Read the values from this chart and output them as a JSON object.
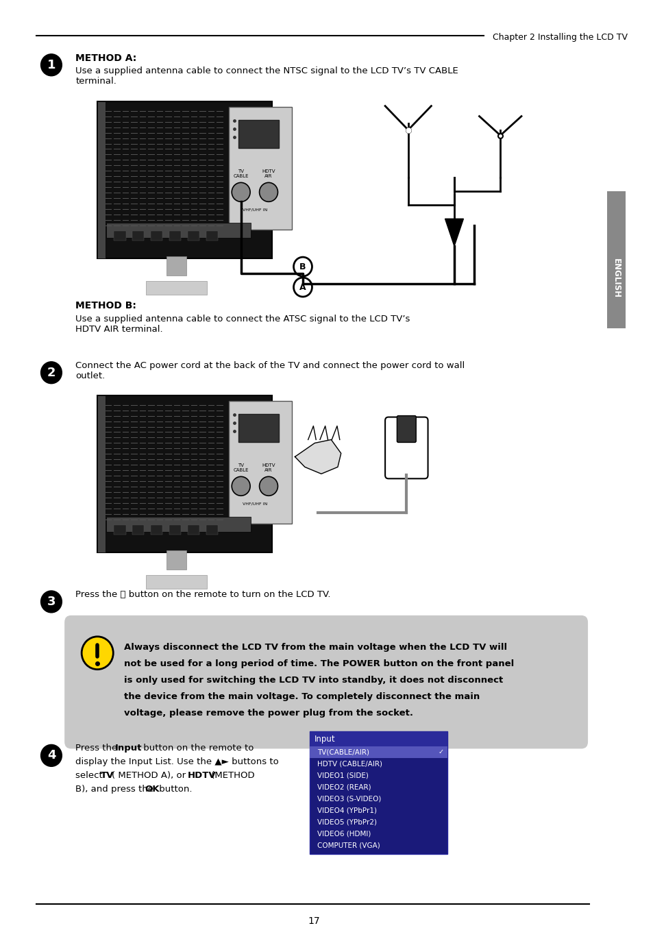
{
  "page_title": "Chapter 2 Installing the LCD TV",
  "page_number": "17",
  "bg_color": "#ffffff",
  "sidebar_color": "#888888",
  "sidebar_text": "ENGLISH",
  "step1_num": "1",
  "step1_method_a_bold": "METHOD A:",
  "step1_method_a_text": "Use a supplied antenna cable to connect the NTSC signal to the LCD TV’s TV CABLE\nterminal.",
  "step1_method_b_bold": "METHOD B:",
  "step1_method_b_text": "Use a supplied antenna cable to connect the ATSC signal to the LCD TV’s\nHDTV AIR terminal.",
  "step2_num": "2",
  "step2_text": "Connect the AC power cord at the back of the TV and connect the power cord to wall\noutlet.",
  "step3_num": "3",
  "step3_text": "Press the ⏻ button on the remote to turn on the LCD TV.",
  "warning_bg": "#c0c0c0",
  "warning_text_lines": [
    "Always disconnect the LCD TV from the main voltage when the LCD TV will",
    "not be used for a long period of time. The POWER button on the front panel",
    "is only used for switching the LCD TV into standby, it does not disconnect",
    "the device from the main voltage. To completely disconnect the main",
    "voltage, please remove the power plug from the socket."
  ],
  "step4_num": "4",
  "input_menu_title": "Input",
  "input_menu_items": [
    "TV(CABLE/AIR)",
    "HDTV (CABLE/AIR)",
    "VIDEO1 (SIDE)",
    "VIDEO2 (REAR)",
    "VIDEO3 (S-VIDEO)",
    "VIDEO4 (YPbPr1)",
    "VIDEO5 (YPbPr2)",
    "VIDEO6 (HDMI)",
    "COMPUTER (VGA)"
  ]
}
